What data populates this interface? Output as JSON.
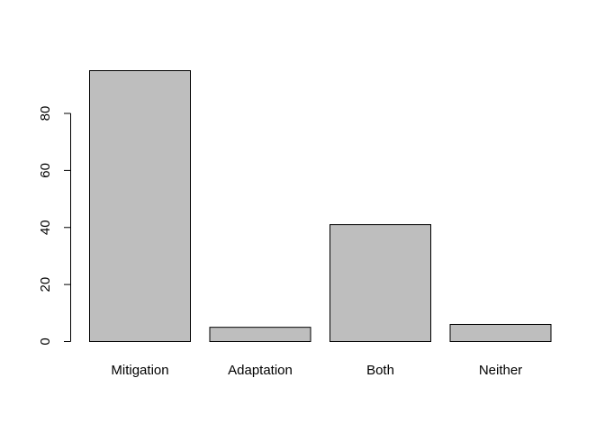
{
  "chart_data": {
    "type": "bar",
    "categories": [
      "Mitigation",
      "Adaptation",
      "Both",
      "Neither"
    ],
    "values": [
      95,
      5,
      41,
      6
    ],
    "title": "",
    "xlabel": "",
    "ylabel": "",
    "ylim": [
      0,
      95
    ],
    "yticks": [
      0,
      20,
      40,
      60,
      80
    ],
    "grid": false,
    "colors": {
      "bar_fill": "#bebebe",
      "bar_stroke": "#000000",
      "axis": "#000000"
    }
  }
}
